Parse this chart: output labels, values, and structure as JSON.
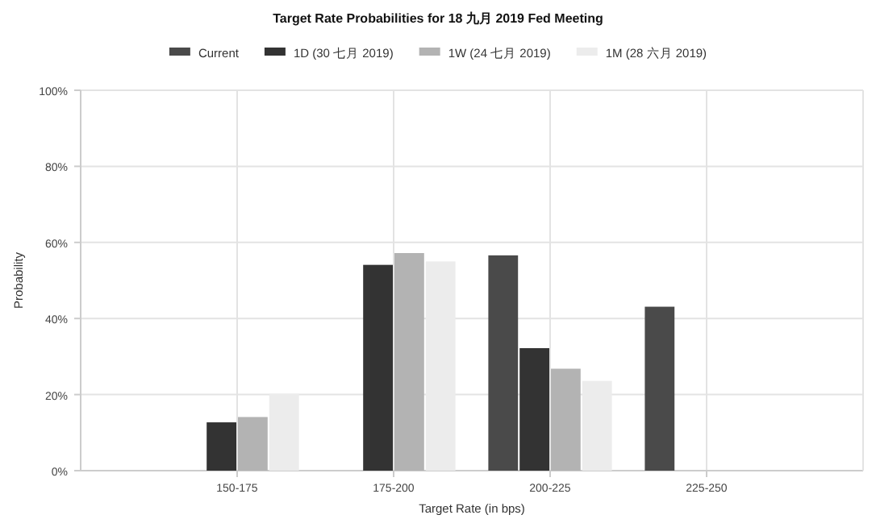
{
  "chart_data": {
    "type": "bar",
    "title": "Target Rate Probabilities for 18 九月 2019 Fed Meeting",
    "xlabel": "Target Rate (in bps)",
    "ylabel": "Probability",
    "categories": [
      "150-175",
      "175-200",
      "200-225",
      "225-250"
    ],
    "series": [
      {
        "name": "Current",
        "color": "#4a4a4a",
        "values": [
          0,
          0,
          56.6,
          43.1
        ]
      },
      {
        "name": "1D (30 七月 2019)",
        "color": "#333333",
        "values": [
          12.7,
          54.1,
          32.2,
          0
        ]
      },
      {
        "name": "1W (24 七月 2019)",
        "color": "#b3b3b3",
        "values": [
          14.1,
          57.2,
          26.8,
          0
        ]
      },
      {
        "name": "1M (28 六月 2019)",
        "color": "#ececec",
        "values": [
          20.2,
          55.0,
          23.6,
          0
        ]
      }
    ],
    "ylim": [
      0,
      100
    ],
    "yticks": [
      {
        "value": 0,
        "label": "0%"
      },
      {
        "value": 20,
        "label": "20%"
      },
      {
        "value": 40,
        "label": "40%"
      },
      {
        "value": 60,
        "label": "60%"
      },
      {
        "value": 80,
        "label": "80%"
      },
      {
        "value": 100,
        "label": "100%"
      }
    ],
    "grid": true,
    "legend": "top"
  }
}
